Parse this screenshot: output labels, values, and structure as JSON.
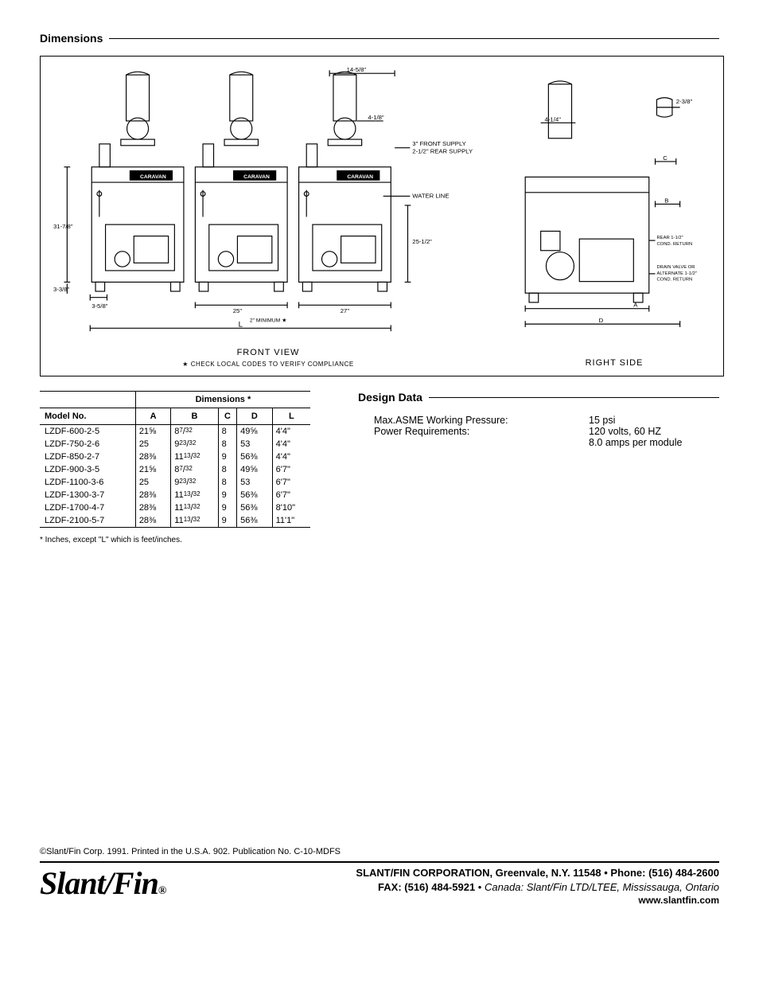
{
  "sections": {
    "dimensions_title": "Dimensions",
    "design_title": "Design Data"
  },
  "drawing": {
    "front_view_label": "FRONT VIEW",
    "right_side_label": "RIGHT SIDE",
    "compliance_note": "CHECK LOCAL CODES TO VERIFY COMPLIANCE",
    "compliance_star": "★",
    "callouts": {
      "top_dim": "14-5/8\"",
      "flue_dim": "4-1/8\"",
      "front_supply": "3\" FRONT SUPPLY",
      "rear_supply": "2-1/2\" REAR SUPPLY",
      "water_line": "WATER LINE",
      "water_line_dim": "25-1/2\"",
      "left_height": "31-7/8\"",
      "left_low": "3-3/8\"",
      "left_offset": "3-5/8\"",
      "unit_w": "25\"",
      "gap_w": "2\" MINIMUM ★",
      "unit_w2": "27\"",
      "overall_L": "L",
      "brand": "CARAVAN",
      "right_flue": "4-1/4\"",
      "right_top": "2-3/8\"",
      "right_C": "C",
      "right_B": "B",
      "right_rear": "REAR 1-1/2\"\nCOND. RETURN",
      "right_drain": "DRAIN VALVE OR\nALTERNATE 1-1/2\"\nCOND. RETURN",
      "right_A": "A",
      "right_D": "D"
    }
  },
  "table": {
    "group_header": "Dimensions *",
    "columns": [
      "Model No.",
      "A",
      "B",
      "C",
      "D",
      "L"
    ],
    "rows": [
      {
        "model": "LZDF-600-2-5",
        "A": "21⅝",
        "B": "8",
        "Bn": "7",
        "Bd": "32",
        "C": "8",
        "D": "49⅝",
        "L": "4'4\""
      },
      {
        "model": "LZDF-750-2-6",
        "A": "25",
        "B": "9",
        "Bn": "23",
        "Bd": "32",
        "C": "8",
        "D": "53",
        "L": "4'4\""
      },
      {
        "model": "LZDF-850-2-7",
        "A": "28⅜",
        "B": "11",
        "Bn": "13",
        "Bd": "32",
        "C": "9",
        "D": "56⅜",
        "L": "4'4\""
      },
      {
        "model": "LZDF-900-3-5",
        "A": "21⅝",
        "B": "8",
        "Bn": "7",
        "Bd": "32",
        "C": "8",
        "D": "49⅝",
        "L": "6'7\""
      },
      {
        "model": "LZDF-1100-3-6",
        "A": "25",
        "B": "9",
        "Bn": "23",
        "Bd": "32",
        "C": "8",
        "D": "53",
        "L": "6'7\""
      },
      {
        "model": "LZDF-1300-3-7",
        "A": "28⅜",
        "B": "11",
        "Bn": "13",
        "Bd": "32",
        "C": "9",
        "D": "56⅜",
        "L": "6'7\""
      },
      {
        "model": "LZDF-1700-4-7",
        "A": "28⅜",
        "B": "11",
        "Bn": "13",
        "Bd": "32",
        "C": "9",
        "D": "56⅜",
        "L": "8'10\""
      },
      {
        "model": "LZDF-2100-5-7",
        "A": "28⅜",
        "B": "11",
        "Bn": "13",
        "Bd": "32",
        "C": "9",
        "D": "56⅜",
        "L": "11'1\""
      }
    ],
    "note": "*  Inches, except \"L\" which is feet/inches."
  },
  "design": {
    "rows": [
      {
        "k": "Max.ASME Working Pressure:",
        "v": "15 psi"
      },
      {
        "k": "Power Requirements:",
        "v": "120 volts, 60 HZ"
      },
      {
        "k": "",
        "v": "8.0 amps per module"
      }
    ]
  },
  "footer": {
    "copyright": "©Slant/Fin Corp. 1991.  Printed in the U.S.A. 902.  Publication No. C-10-MDFS",
    "logo": "Slant/Fin",
    "logo_reg": "®",
    "addr1": "SLANT/FIN CORPORATION, Greenvale, N.Y. 11548 • Phone: (516) 484-2600",
    "addr2_fax": "FAX: (516) 484-5921",
    "addr2_sep": " • ",
    "addr2_canada": "Canada: Slant/Fin LTD/LTEE, Mississauga, Ontario",
    "addr3": "www.slantfin.com"
  }
}
